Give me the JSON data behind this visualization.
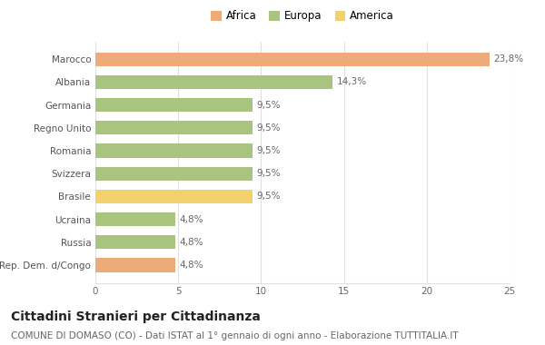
{
  "categories": [
    "Marocco",
    "Albania",
    "Germania",
    "Regno Unito",
    "Romania",
    "Svizzera",
    "Brasile",
    "Ucraina",
    "Russia",
    "Rep. Dem. d/Congo"
  ],
  "values": [
    23.8,
    14.3,
    9.5,
    9.5,
    9.5,
    9.5,
    9.5,
    4.8,
    4.8,
    4.8
  ],
  "labels": [
    "23,8%",
    "14,3%",
    "9,5%",
    "9,5%",
    "9,5%",
    "9,5%",
    "9,5%",
    "4,8%",
    "4,8%",
    "4,8%"
  ],
  "colors": [
    "#EDAB7A",
    "#A9C47F",
    "#A9C47F",
    "#A9C47F",
    "#A9C47F",
    "#A9C47F",
    "#F2D06B",
    "#A9C47F",
    "#A9C47F",
    "#EDAB7A"
  ],
  "legend_labels": [
    "Africa",
    "Europa",
    "America"
  ],
  "legend_colors": [
    "#EDAB7A",
    "#A9C47F",
    "#F2D06B"
  ],
  "title": "Cittadini Stranieri per Cittadinanza",
  "subtitle": "COMUNE DI DOMASO (CO) - Dati ISTAT al 1° gennaio di ogni anno - Elaborazione TUTTITALIA.IT",
  "xlim": [
    0,
    25
  ],
  "xticks": [
    0,
    5,
    10,
    15,
    20,
    25
  ],
  "background_color": "#ffffff",
  "grid_color": "#e0e0e0",
  "bar_height": 0.6,
  "label_fontsize": 7.5,
  "title_fontsize": 10,
  "subtitle_fontsize": 7.5,
  "tick_fontsize": 7.5,
  "ytick_fontsize": 7.5
}
